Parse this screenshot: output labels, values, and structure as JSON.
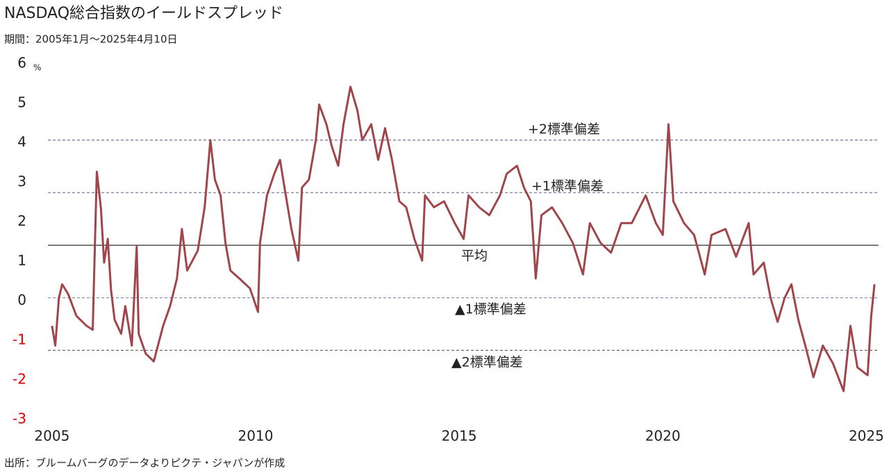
{
  "chart_data": {
    "type": "line",
    "title": "NASDAQ総合指数のイールドスプレッド",
    "subtitle": "期間：2005年1月～2025年4月10日",
    "y_unit": "%",
    "source": "出所：ブルームバーグのデータよりピクテ・ジャパンが作成",
    "color": "#a0464b",
    "negative_tick_color": "#e00000",
    "grid": false,
    "xlim": [
      2004.9,
      2025.3
    ],
    "xticks": [
      2005,
      2010,
      2015,
      2020,
      2025
    ],
    "ylim": [
      -3,
      6
    ],
    "yticks": [
      -3,
      -2,
      -1,
      0,
      1,
      2,
      3,
      4,
      5,
      6
    ],
    "x": [
      2005.0,
      2005.08,
      2005.17,
      2005.25,
      2005.4,
      2005.6,
      2005.85,
      2006.0,
      2006.1,
      2006.2,
      2006.28,
      2006.37,
      2006.45,
      2006.54,
      2006.7,
      2006.8,
      2006.96,
      2007.08,
      2007.13,
      2007.3,
      2007.5,
      2007.73,
      2007.9,
      2008.07,
      2008.19,
      2008.32,
      2008.58,
      2008.75,
      2008.89,
      2009.0,
      2009.14,
      2009.26,
      2009.38,
      2009.6,
      2009.86,
      2010.06,
      2010.11,
      2010.28,
      2010.46,
      2010.6,
      2010.71,
      2010.88,
      2011.05,
      2011.14,
      2011.31,
      2011.48,
      2011.56,
      2011.74,
      2011.87,
      2012.03,
      2012.16,
      2012.33,
      2012.5,
      2012.62,
      2012.84,
      2013.01,
      2013.18,
      2013.35,
      2013.53,
      2013.7,
      2013.9,
      2014.09,
      2014.16,
      2014.38,
      2014.63,
      2014.89,
      2015.11,
      2015.23,
      2015.49,
      2015.74,
      2016.0,
      2016.17,
      2016.42,
      2016.59,
      2016.76,
      2016.88,
      2017.02,
      2017.28,
      2017.53,
      2017.79,
      2018.04,
      2018.21,
      2018.47,
      2018.73,
      2018.98,
      2019.24,
      2019.58,
      2019.83,
      2020.0,
      2020.14,
      2020.26,
      2020.52,
      2020.77,
      2021.03,
      2021.2,
      2021.54,
      2021.8,
      2022.11,
      2022.23,
      2022.48,
      2022.65,
      2022.82,
      2022.99,
      2023.16,
      2023.33,
      2023.5,
      2023.7,
      2023.93,
      2024.18,
      2024.44,
      2024.61,
      2024.78,
      2025.03,
      2025.12,
      2025.2
    ],
    "values": [
      -0.7,
      -1.2,
      0.0,
      0.35,
      0.1,
      -0.45,
      -0.7,
      -0.8,
      3.2,
      2.3,
      0.9,
      1.5,
      0.2,
      -0.55,
      -0.9,
      -0.2,
      -1.2,
      1.3,
      -0.9,
      -1.4,
      -1.6,
      -0.7,
      -0.2,
      0.5,
      1.75,
      0.7,
      1.2,
      2.3,
      4.0,
      3.0,
      2.6,
      1.4,
      0.7,
      0.5,
      0.25,
      -0.35,
      1.4,
      2.6,
      3.15,
      3.5,
      2.8,
      1.75,
      0.95,
      2.8,
      3.0,
      4.0,
      4.9,
      4.4,
      3.85,
      3.35,
      4.4,
      5.35,
      4.75,
      4.0,
      4.4,
      3.5,
      4.3,
      3.5,
      2.45,
      2.3,
      1.5,
      0.95,
      2.6,
      2.3,
      2.45,
      1.9,
      1.5,
      2.6,
      2.3,
      2.1,
      2.6,
      3.15,
      3.35,
      2.8,
      2.45,
      0.5,
      2.1,
      2.3,
      1.9,
      1.4,
      0.6,
      1.9,
      1.4,
      1.15,
      1.9,
      1.9,
      2.6,
      1.9,
      1.6,
      4.4,
      2.45,
      1.9,
      1.6,
      0.6,
      1.6,
      1.75,
      1.05,
      1.9,
      0.6,
      0.9,
      0.0,
      -0.6,
      0.0,
      0.35,
      -0.55,
      -1.2,
      -2.0,
      -1.2,
      -1.65,
      -2.35,
      -0.7,
      -1.75,
      -1.95,
      -0.45,
      0.35
    ],
    "reference_lines": [
      {
        "label": "+2標準偏差",
        "value": 4.0,
        "color": "#7a6a9a",
        "dashed": true
      },
      {
        "label": "+1標準偏差",
        "value": 2.67,
        "color": "#7a6a9a",
        "dashed": true
      },
      {
        "label": "平均",
        "value": 1.34,
        "color": "#333333",
        "dashed": false
      },
      {
        "label": "▲1標準偏差",
        "value": 0.01,
        "color": "#7a8aa8",
        "dashed": true
      },
      {
        "label": "▲2標準偏差",
        "value": -1.32,
        "color": "#666666",
        "dashed": true
      }
    ]
  }
}
